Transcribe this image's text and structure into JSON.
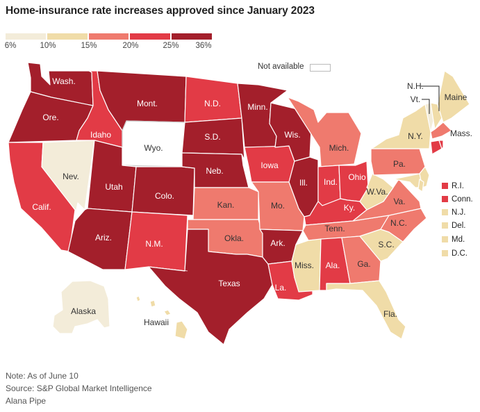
{
  "title": "Home-insurance rate increases approved since January 2023",
  "legend": {
    "ticks": [
      "6%",
      "10%",
      "15%",
      "20%",
      "25%",
      "36%"
    ],
    "colors": [
      "#f3ecd9",
      "#f0dca8",
      "#ef7a6e",
      "#e23b46",
      "#a31f2b"
    ],
    "not_available_label": "Not available",
    "not_available_color": "#ffffff"
  },
  "states": {
    "wash": {
      "label": "Wash.",
      "color": "#a31f2b"
    },
    "ore": {
      "label": "Ore.",
      "color": "#a31f2b"
    },
    "calif": {
      "label": "Calif.",
      "color": "#e23b46"
    },
    "idaho": {
      "label": "Idaho",
      "color": "#e23b46"
    },
    "nev": {
      "label": "Nev.",
      "color": "#f3ecd9"
    },
    "mont": {
      "label": "Mont.",
      "color": "#a31f2b"
    },
    "wyo": {
      "label": "Wyo.",
      "color": "#ffffff"
    },
    "utah": {
      "label": "Utah",
      "color": "#a31f2b"
    },
    "ariz": {
      "label": "Ariz.",
      "color": "#a31f2b"
    },
    "colo": {
      "label": "Colo.",
      "color": "#a31f2b"
    },
    "nm": {
      "label": "N.M.",
      "color": "#e23b46"
    },
    "nd": {
      "label": "N.D.",
      "color": "#e23b46"
    },
    "sd": {
      "label": "S.D.",
      "color": "#a31f2b"
    },
    "neb": {
      "label": "Neb.",
      "color": "#a31f2b"
    },
    "kan": {
      "label": "Kan.",
      "color": "#ef7a6e"
    },
    "okla": {
      "label": "Okla.",
      "color": "#ef7a6e"
    },
    "texas": {
      "label": "Texas",
      "color": "#a31f2b"
    },
    "minn": {
      "label": "Minn.",
      "color": "#a31f2b"
    },
    "iowa": {
      "label": "Iowa",
      "color": "#e23b46"
    },
    "mo": {
      "label": "Mo.",
      "color": "#ef7a6e"
    },
    "ark": {
      "label": "Ark.",
      "color": "#a31f2b"
    },
    "la": {
      "label": "La.",
      "color": "#e23b46"
    },
    "wis": {
      "label": "Wis.",
      "color": "#a31f2b"
    },
    "ill": {
      "label": "Ill.",
      "color": "#a31f2b"
    },
    "mich": {
      "label": "Mich.",
      "color": "#ef7a6e"
    },
    "ind": {
      "label": "Ind.",
      "color": "#e23b46"
    },
    "ohio": {
      "label": "Ohio",
      "color": "#e23b46"
    },
    "ky": {
      "label": "Ky.",
      "color": "#e23b46"
    },
    "tenn": {
      "label": "Tenn.",
      "color": "#ef7a6e"
    },
    "miss": {
      "label": "Miss.",
      "color": "#f0dca8"
    },
    "ala": {
      "label": "Ala.",
      "color": "#e23b46"
    },
    "ga": {
      "label": "Ga.",
      "color": "#ef7a6e"
    },
    "fla": {
      "label": "Fla.",
      "color": "#f0dca8"
    },
    "sc": {
      "label": "S.C.",
      "color": "#f0dca8"
    },
    "nc": {
      "label": "N.C.",
      "color": "#ef7a6e"
    },
    "va": {
      "label": "Va.",
      "color": "#ef7a6e"
    },
    "wva": {
      "label": "W.Va.",
      "color": "#f0dca8"
    },
    "pa": {
      "label": "Pa.",
      "color": "#ef7a6e"
    },
    "ny": {
      "label": "N.Y.",
      "color": "#f0dca8"
    },
    "vt": {
      "label": "Vt.",
      "color": "#f3ecd9"
    },
    "nh": {
      "label": "N.H.",
      "color": "#f0dca8"
    },
    "maine": {
      "label": "Maine",
      "color": "#f0dca8"
    },
    "mass": {
      "label": "Mass.",
      "color": "#ef7a6e"
    },
    "alaska": {
      "label": "Alaska",
      "color": "#f3ecd9"
    },
    "hawaii": {
      "label": "Hawaii",
      "color": "#f0dca8"
    }
  },
  "small_states": [
    {
      "label": "R.I.",
      "color": "#e23b46"
    },
    {
      "label": "Conn.",
      "color": "#e23b46"
    },
    {
      "label": "N.J.",
      "color": "#f0dca8"
    },
    {
      "label": "Del.",
      "color": "#f0dca8"
    },
    {
      "label": "Md.",
      "color": "#f0dca8"
    },
    {
      "label": "D.C.",
      "color": "#f0dca8"
    }
  ],
  "footer": {
    "note": "Note: As of June 10",
    "source": "Source: S&P Global Market Intelligence",
    "author": "Alana Pipe"
  }
}
